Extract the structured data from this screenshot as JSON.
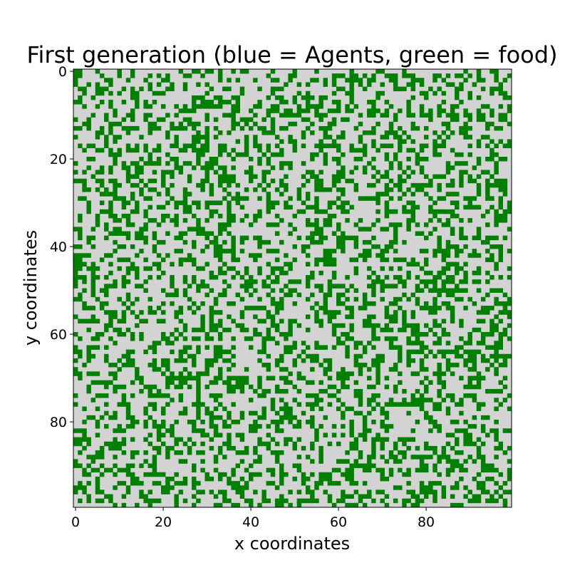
{
  "chart_data": {
    "type": "heatmap",
    "title": "First generation (blue = Agents, green = food)",
    "xlabel": "x coordinates",
    "ylabel": "y coordinates",
    "grid_size": [
      100,
      100
    ],
    "xlim": [
      -0.5,
      99.5
    ],
    "ylim": [
      99.5,
      -0.5
    ],
    "xticks": [
      0,
      20,
      40,
      60,
      80
    ],
    "yticks": [
      0,
      20,
      40,
      60,
      80
    ],
    "origin": "upper",
    "grid": false,
    "legend": "none",
    "cell_values": {
      "empty": 0,
      "food": 1,
      "agent": 2
    },
    "colors": {
      "empty": "#d3d3d3",
      "food": "#008000",
      "agent": "#0000ff"
    },
    "food_fraction": 0.35,
    "agent_count": 0,
    "random_seed": 12345
  }
}
